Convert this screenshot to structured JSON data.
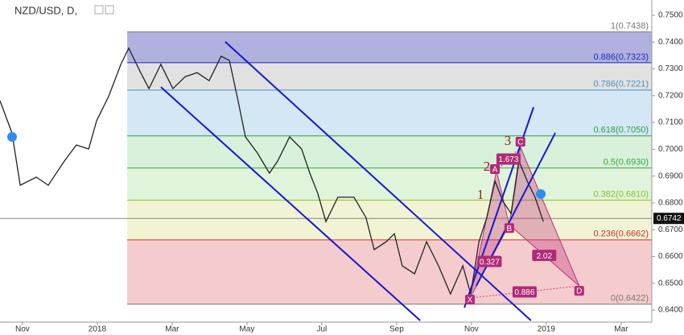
{
  "chart_data": {
    "type": "price",
    "title": "NZD/USD, D,",
    "xlim": [
      -0.6,
      16.82
    ],
    "xticks": [
      {
        "value": 0,
        "label": "Nov"
      },
      {
        "value": 2,
        "label": "2018"
      },
      {
        "value": 4,
        "label": "Mar"
      },
      {
        "value": 6,
        "label": "May"
      },
      {
        "value": 8,
        "label": "Jul"
      },
      {
        "value": 10,
        "label": "Sep"
      },
      {
        "value": 12,
        "label": "Nov"
      },
      {
        "value": 14,
        "label": "2019"
      },
      {
        "value": 16,
        "label": "Mar"
      }
    ],
    "ylim": [
      0.6355,
      0.7557
    ],
    "yticks": [
      {
        "value": 0.64,
        "label": "0.6400"
      },
      {
        "value": 0.65,
        "label": "0.6500"
      },
      {
        "value": 0.66,
        "label": "0.6600"
      },
      {
        "value": 0.67,
        "label": "0.6700"
      },
      {
        "value": 0.68,
        "label": "0.6800"
      },
      {
        "value": 0.69,
        "label": "0.6900"
      },
      {
        "value": 0.7,
        "label": "0.7000"
      },
      {
        "value": 0.71,
        "label": "0.7100"
      },
      {
        "value": 0.72,
        "label": "0.7200"
      },
      {
        "value": 0.73,
        "label": "0.7300"
      },
      {
        "value": 0.74,
        "label": "0.7400"
      },
      {
        "value": 0.75,
        "label": "0.7500"
      }
    ],
    "series": [
      {
        "color": "#222222",
        "x": [
          -0.6,
          -0.28,
          -0.06,
          0.37,
          0.69,
          1.12,
          1.44,
          1.77,
          1.98,
          2.3,
          2.63,
          2.84,
          3.16,
          3.38,
          3.7,
          4.02,
          4.35,
          4.67,
          4.99,
          5.31,
          5.53,
          5.74,
          5.96,
          6.28,
          6.6,
          6.82,
          7.14,
          7.46,
          7.68,
          7.89,
          8.11,
          8.43,
          8.86,
          9.18,
          9.4,
          9.72,
          9.94,
          10.15,
          10.48,
          10.8,
          11.12,
          11.44,
          11.77,
          11.98,
          12.2,
          12.41,
          12.63,
          12.84,
          13.06,
          13.27,
          13.49,
          13.7,
          13.92
        ],
        "values": [
          0.7181,
          0.7061,
          0.6866,
          0.6896,
          0.6866,
          0.6956,
          0.7016,
          0.7001,
          0.7106,
          0.7196,
          0.7317,
          0.7377,
          0.7286,
          0.7226,
          0.7317,
          0.7226,
          0.7271,
          0.7286,
          0.7256,
          0.7347,
          0.7332,
          0.7196,
          0.7046,
          0.6986,
          0.6911,
          0.6956,
          0.7046,
          0.7001,
          0.6911,
          0.6836,
          0.673,
          0.6821,
          0.6821,
          0.6745,
          0.6625,
          0.6655,
          0.6685,
          0.6565,
          0.6535,
          0.6655,
          0.6565,
          0.646,
          0.6565,
          0.646,
          0.6655,
          0.6745,
          0.6881,
          0.6806,
          0.676,
          0.6956,
          0.6881,
          0.6821,
          0.673
        ]
      }
    ],
    "last_price": {
      "value": 0.6742,
      "label": "0.6742"
    },
    "fib_start": 2.8,
    "fib_levels": [
      {
        "label": "1(0.7438)",
        "price": 0.7438,
        "color": "#777777",
        "fill": "#a7a8db"
      },
      {
        "label": "0.886(0.7323)",
        "price": 0.7323,
        "color": "#1f2bb8",
        "fill": "#dedede"
      },
      {
        "label": "0.786(0.7221)",
        "price": 0.7221,
        "color": "#4a90c8",
        "fill": "#cfe4f3"
      },
      {
        "label": "0.618(0.7050)",
        "price": 0.705,
        "color": "#2f9e44",
        "fill": "#d3efd6"
      },
      {
        "label": "0.5(0.6930)",
        "price": 0.693,
        "color": "#3aa83a",
        "fill": "#ddf2d7"
      },
      {
        "label": "0.382(0.6810)",
        "price": 0.681,
        "color": "#8cbf26",
        "fill": "#eef3cf"
      },
      {
        "label": "0.236(0.6662)",
        "price": 0.6662,
        "color": "#d0312d",
        "fill": "#f4c6c9"
      },
      {
        "label": "0(0.6422)",
        "price": 0.6422,
        "color": "#777777",
        "fill": "#f4c6c9"
      }
    ],
    "channels": [
      {
        "x": [
          5.42,
          13.59
        ],
        "values": [
          0.7401,
          0.6361
        ]
      },
      {
        "x": [
          3.7,
          10.63
        ],
        "values": [
          0.7232,
          0.6361
        ]
      },
      {
        "x": [
          11.81,
          13.66
        ],
        "values": [
          0.6409,
          0.7157
        ]
      },
      {
        "x": [
          12.13,
          14.24
        ],
        "values": [
          0.649,
          0.7061
        ]
      }
    ],
    "pattern": {
      "labels": [
        "X",
        "A",
        "B",
        "C",
        "D"
      ],
      "x": [
        11.96,
        12.67,
        13.01,
        13.31,
        14.88
      ],
      "values": [
        0.6445,
        0.692,
        0.6718,
        0.7007,
        0.649
      ],
      "ratios": [
        "0.327",
        "1.673",
        "2.02",
        "0.886"
      ]
    },
    "waves": [
      "1",
      "2",
      "3"
    ]
  }
}
